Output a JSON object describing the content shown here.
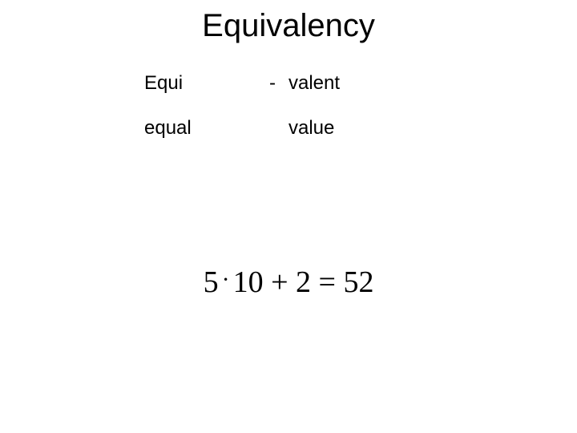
{
  "title": "Equivalency",
  "table": {
    "rows": [
      {
        "col1": "Equi",
        "col2": "-",
        "col3": "valent"
      },
      {
        "col1": "equal",
        "col2": "",
        "col3": "value"
      }
    ]
  },
  "equation": {
    "part1": "5",
    "dot": "·",
    "part2": "10",
    "plus": " + ",
    "part3": "2",
    "equals": " = ",
    "part4": "52"
  },
  "styling": {
    "title_fontsize": 40,
    "body_fontsize": 24,
    "equation_fontsize": 38,
    "background_color": "#ffffff",
    "text_color": "#000000"
  }
}
